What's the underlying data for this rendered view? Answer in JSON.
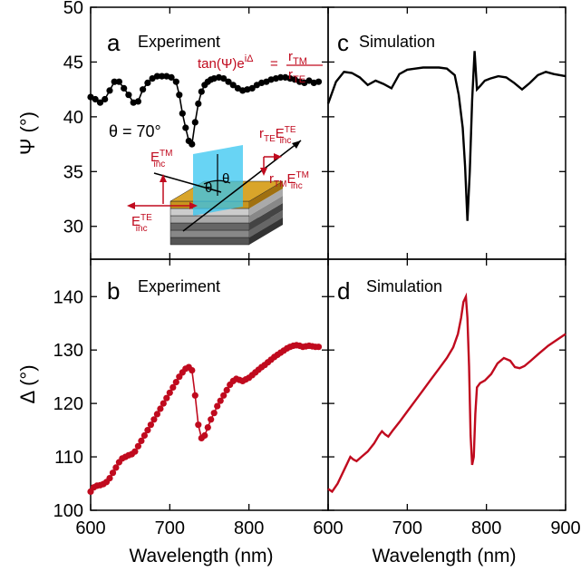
{
  "chart_data": [
    {
      "type": "scatter",
      "panel_letter": "a",
      "title": "Experiment",
      "ylabel": "Ψ (°)",
      "xlim": [
        600,
        900
      ],
      "ylim": [
        27,
        50
      ],
      "yticks": [
        30,
        35,
        40,
        45,
        50
      ],
      "annotation_angle": "θ = 70°",
      "annotation_formula": {
        "lhs": "tan(Ψ)e",
        "lhs_sup": "iΔ",
        "eq": "=",
        "num": "r",
        "num_sub": "TM",
        "den": "r",
        "den_sub": "TE"
      },
      "inset_labels": {
        "e_tm": "E",
        "e_tm_sup": "TM",
        "e_tm_sub": "inc",
        "e_te": "E",
        "e_te_sup": "TE",
        "e_te_sub": "inc",
        "r_te": "r",
        "r_te_sub": "TE",
        "r_te_e": "E",
        "r_te_sup": "TE",
        "r_te_sub2": "inc",
        "r_tm": "r",
        "r_tm_sub": "TM",
        "r_tm_e": "E",
        "r_tm_sup": "TM",
        "r_tm_sub2": "inc",
        "theta": "θ"
      },
      "color": "#000000",
      "x": [
        600,
        606,
        612,
        618,
        624,
        630,
        636,
        642,
        648,
        654,
        660,
        666,
        672,
        678,
        684,
        690,
        696,
        702,
        708,
        712,
        716,
        720,
        724,
        728,
        732,
        736,
        740,
        744,
        748,
        752,
        756,
        762,
        768,
        774,
        780,
        786,
        792,
        798,
        804,
        810,
        816,
        822,
        828,
        834,
        840,
        846,
        852,
        858,
        864,
        870,
        876,
        882,
        888
      ],
      "y": [
        41.8,
        41.6,
        41.3,
        41.6,
        42.4,
        43.2,
        43.2,
        42.6,
        42.0,
        41.3,
        41.4,
        42.5,
        43.1,
        43.5,
        43.7,
        43.7,
        43.7,
        43.6,
        43.2,
        42.0,
        40.3,
        39.0,
        37.8,
        37.5,
        39.5,
        41.2,
        42.3,
        42.9,
        43.2,
        43.4,
        43.5,
        43.6,
        43.5,
        43.2,
        42.9,
        42.6,
        42.4,
        42.5,
        42.6,
        42.9,
        43.1,
        43.2,
        43.4,
        43.5,
        43.6,
        43.6,
        43.5,
        43.4,
        43.2,
        43.1,
        43.3,
        43.1,
        43.2
      ]
    },
    {
      "type": "line",
      "panel_letter": "c",
      "title": "Simulation",
      "xlim": [
        600,
        900
      ],
      "ylim": [
        27,
        50
      ],
      "color": "#000000",
      "x": [
        600,
        610,
        620,
        630,
        640,
        650,
        660,
        670,
        680,
        690,
        700,
        710,
        720,
        730,
        740,
        750,
        760,
        765,
        770,
        773,
        776,
        779,
        782,
        785,
        788,
        792,
        798,
        805,
        815,
        825,
        835,
        845,
        855,
        865,
        875,
        885,
        900
      ],
      "y": [
        41.2,
        43.2,
        44.1,
        44.0,
        43.6,
        42.9,
        43.3,
        43.0,
        42.6,
        43.9,
        44.3,
        44.4,
        44.5,
        44.5,
        44.5,
        44.4,
        43.8,
        42.0,
        39.0,
        35.5,
        30.5,
        35.0,
        41.5,
        46.0,
        42.5,
        42.8,
        43.3,
        43.5,
        43.7,
        43.6,
        43.1,
        42.5,
        43.1,
        43.8,
        44.1,
        43.9,
        43.7
      ]
    },
    {
      "type": "scatter",
      "panel_letter": "b",
      "title": "Experiment",
      "ylabel": "Δ (°)",
      "xlabel": "Wavelength (nm)",
      "xlim": [
        600,
        900
      ],
      "ylim": [
        100,
        147
      ],
      "yticks": [
        100,
        110,
        120,
        130,
        140
      ],
      "xticks": [
        600,
        700,
        800
      ],
      "color": "#c00a1e",
      "x": [
        600,
        604,
        608,
        612,
        616,
        620,
        624,
        628,
        632,
        636,
        640,
        644,
        648,
        652,
        656,
        660,
        664,
        668,
        672,
        676,
        680,
        684,
        688,
        692,
        696,
        700,
        704,
        708,
        712,
        716,
        720,
        724,
        728,
        732,
        736,
        740,
        744,
        748,
        752,
        756,
        760,
        764,
        768,
        772,
        776,
        780,
        784,
        788,
        792,
        796,
        800,
        804,
        808,
        812,
        816,
        820,
        824,
        828,
        832,
        836,
        840,
        844,
        848,
        852,
        856,
        860,
        864,
        868,
        872,
        876,
        880,
        884,
        888
      ],
      "y": [
        103.5,
        104.3,
        104.6,
        104.7,
        104.9,
        105.3,
        106.0,
        107.0,
        108.0,
        109.0,
        109.7,
        110.0,
        110.3,
        110.5,
        111.0,
        112.0,
        113.0,
        114.0,
        115.0,
        116.0,
        117.0,
        118.0,
        119.0,
        120.0,
        121.0,
        122.0,
        123.0,
        124.0,
        125.0,
        125.8,
        126.5,
        126.8,
        126.2,
        121.5,
        116.0,
        113.5,
        114.0,
        115.5,
        117.0,
        118.2,
        119.5,
        120.5,
        121.5,
        122.5,
        123.5,
        124.2,
        124.6,
        124.4,
        124.2,
        124.5,
        124.8,
        125.3,
        125.8,
        126.3,
        126.8,
        127.2,
        127.7,
        128.2,
        128.7,
        129.1,
        129.5,
        129.9,
        130.3,
        130.6,
        130.8,
        130.9,
        130.8,
        130.6,
        130.7,
        130.8,
        130.7,
        130.6,
        130.6
      ]
    },
    {
      "type": "line",
      "panel_letter": "d",
      "title": "Simulation",
      "xlabel": "Wavelength (nm)",
      "xlim": [
        600,
        900
      ],
      "ylim": [
        100,
        147
      ],
      "xticks": [
        600,
        700,
        800,
        900
      ],
      "color": "#c00a1e",
      "x": [
        600,
        605,
        612,
        620,
        628,
        632,
        636,
        642,
        650,
        658,
        664,
        668,
        672,
        676,
        682,
        690,
        700,
        710,
        720,
        730,
        740,
        750,
        758,
        764,
        768,
        771,
        774,
        776,
        778,
        780,
        782,
        784,
        786,
        788,
        792,
        798,
        806,
        814,
        822,
        830,
        836,
        842,
        848,
        856,
        866,
        878,
        890,
        900
      ],
      "y": [
        104.0,
        103.5,
        105.0,
        107.5,
        110.0,
        109.5,
        109.2,
        110.0,
        111.0,
        112.5,
        114.0,
        114.8,
        114.2,
        113.8,
        115.0,
        116.5,
        118.5,
        120.5,
        122.5,
        124.5,
        126.5,
        128.5,
        130.5,
        133.0,
        136.0,
        139.0,
        140.0,
        136.0,
        127.0,
        114.0,
        108.5,
        110.0,
        118.0,
        123.0,
        123.8,
        124.3,
        125.5,
        127.5,
        128.5,
        128.0,
        126.8,
        126.6,
        127.0,
        128.0,
        129.3,
        130.8,
        132.0,
        133.0
      ]
    }
  ]
}
